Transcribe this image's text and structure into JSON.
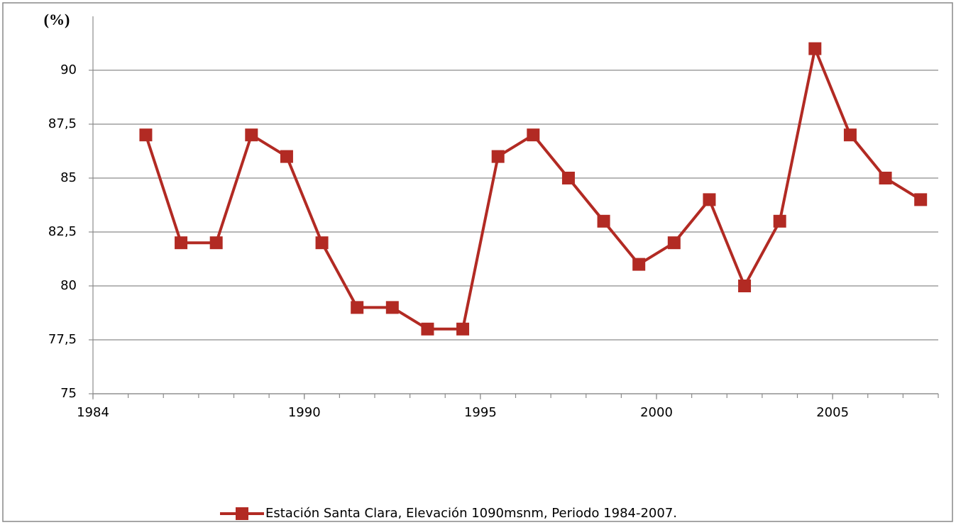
{
  "chart_data": {
    "type": "line",
    "ylabel": "(%)",
    "x": [
      1985.5,
      1986.5,
      1987.5,
      1988.5,
      1989.5,
      1990.5,
      1991.5,
      1992.5,
      1993.5,
      1994.5,
      1995.5,
      1996.5,
      1997.5,
      1998.5,
      1999.5,
      2000.5,
      2001.5,
      2002.5,
      2003.5,
      2004.5,
      2005.5,
      2006.5,
      2007.5
    ],
    "series": [
      {
        "name": "Estación Santa Clara, Elevación 1090msnm, Periodo 1984-2007.",
        "color": "#b22a23",
        "values": [
          87,
          82,
          82,
          87,
          86,
          82,
          79,
          79,
          78,
          78,
          86,
          87,
          85,
          83,
          81,
          82,
          84,
          80,
          83,
          91,
          87,
          85,
          84
        ]
      }
    ],
    "xlim": [
      1984,
      2008
    ],
    "xticks": [
      1984,
      1990,
      1995,
      2000,
      2005
    ],
    "ylim": [
      75,
      92.5
    ],
    "yticks": [
      75,
      {
        "value": 77.5,
        "label": "77,5"
      },
      80,
      {
        "value": 82.5,
        "label": "82,5"
      },
      85,
      {
        "value": 87.5,
        "label": "87,5"
      },
      90
    ],
    "grid": true,
    "legend": "bottom"
  }
}
